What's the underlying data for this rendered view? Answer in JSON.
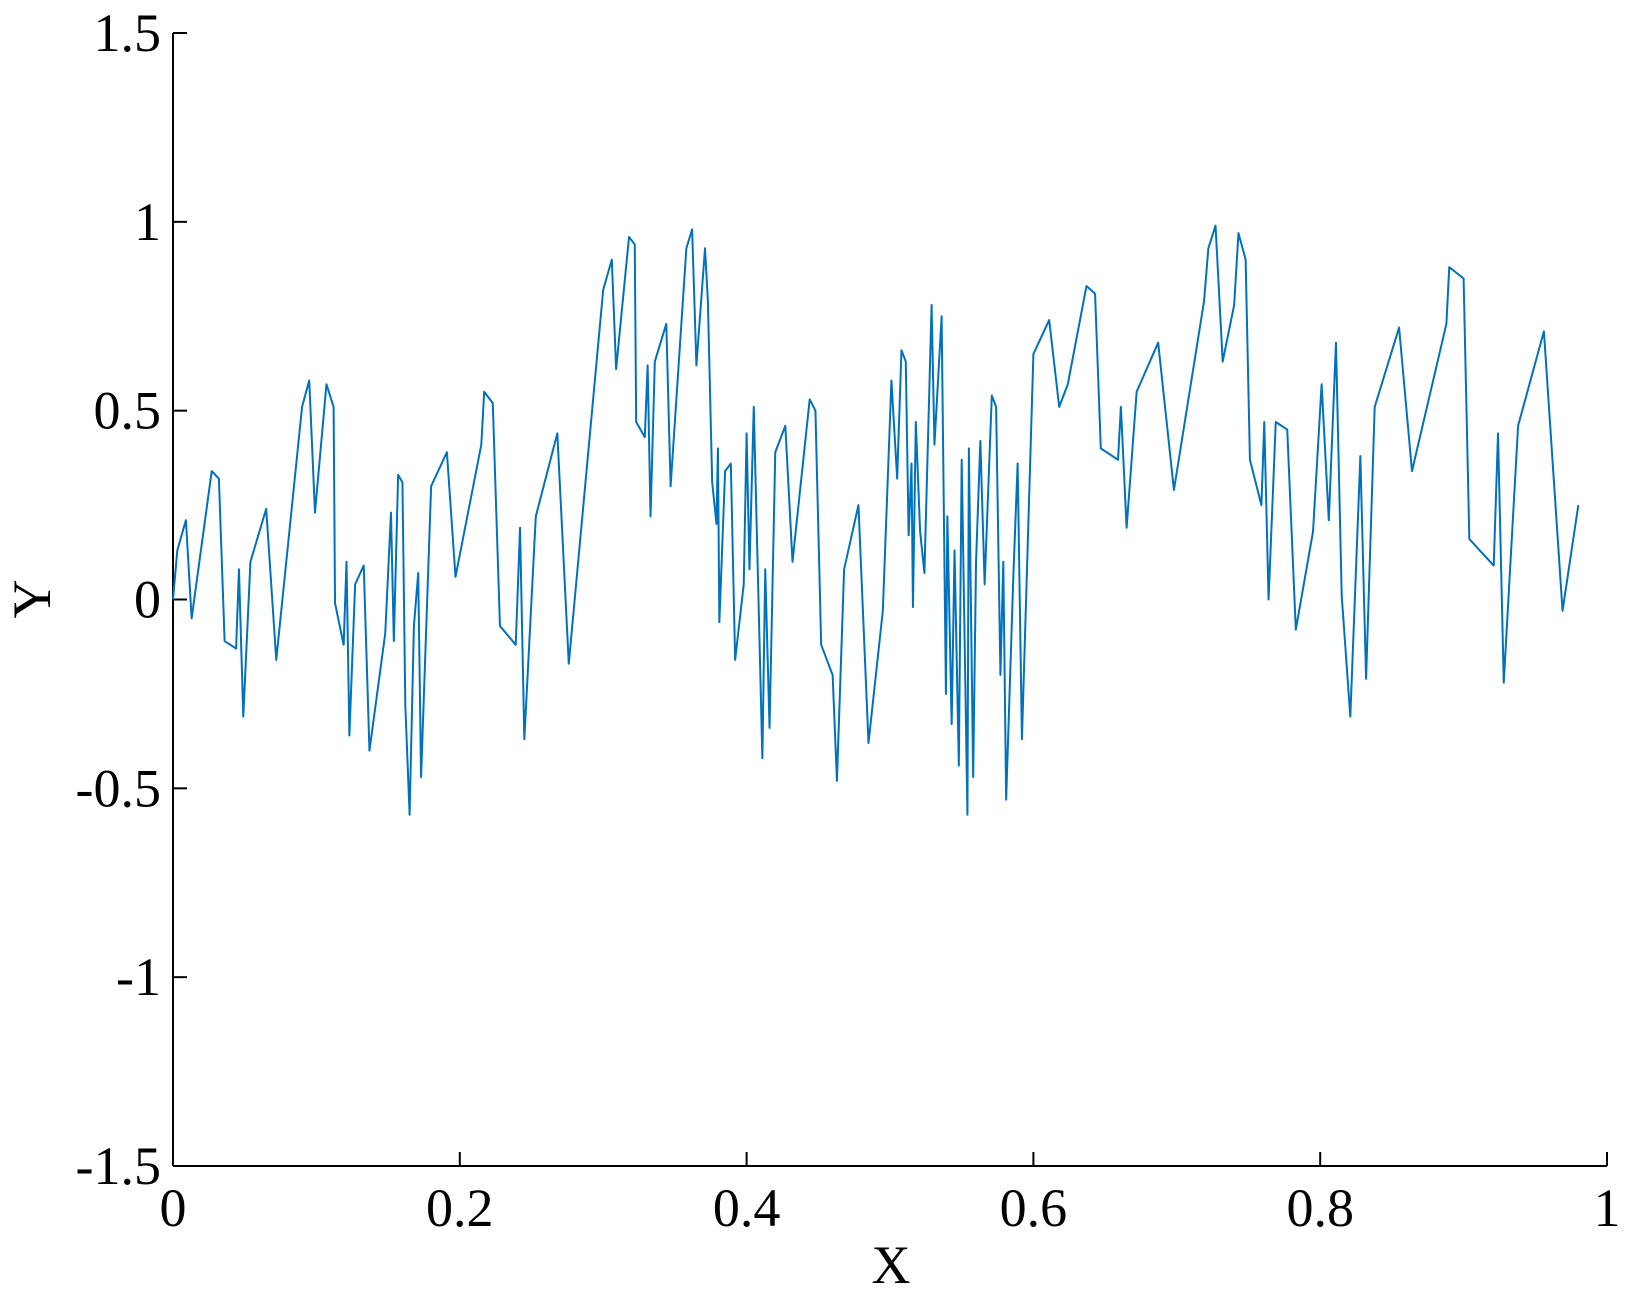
{
  "chart_data": {
    "type": "line",
    "xlabel": "X",
    "ylabel": "Y",
    "xlim": [
      0,
      1
    ],
    "xticks": [
      0,
      0.2,
      0.4,
      0.6,
      0.8,
      1
    ],
    "ylim": [
      -1.5,
      1.5
    ],
    "yticks": [
      -1.5,
      -1,
      -0.5,
      0,
      0.5,
      1,
      1.5
    ],
    "grid": false,
    "series": [
      {
        "color": "#0072bd",
        "x": [
          0,
          0.003,
          0.009,
          0.013,
          0.027,
          0.032,
          0.036,
          0.044,
          0.046,
          0.049,
          0.054,
          0.065,
          0.072,
          0.09,
          0.095,
          0.099,
          0.107,
          0.112,
          0.113,
          0.119,
          0.121,
          0.123,
          0.127,
          0.133,
          0.137,
          0.148,
          0.152,
          0.154,
          0.157,
          0.16,
          0.162,
          0.165,
          0.168,
          0.171,
          0.173,
          0.18,
          0.191,
          0.197,
          0.215,
          0.217,
          0.223,
          0.228,
          0.239,
          0.242,
          0.245,
          0.253,
          0.268,
          0.276,
          0.3,
          0.306,
          0.309,
          0.318,
          0.322,
          0.323,
          0.329,
          0.331,
          0.333,
          0.336,
          0.344,
          0.347,
          0.358,
          0.362,
          0.365,
          0.371,
          0.373,
          0.376,
          0.379,
          0.38,
          0.381,
          0.385,
          0.389,
          0.392,
          0.398,
          0.4,
          0.402,
          0.405,
          0.411,
          0.413,
          0.416,
          0.42,
          0.427,
          0.432,
          0.444,
          0.448,
          0.452,
          0.46,
          0.463,
          0.468,
          0.478,
          0.485,
          0.495,
          0.501,
          0.505,
          0.508,
          0.511,
          0.513,
          0.515,
          0.516,
          0.518,
          0.521,
          0.524,
          0.529,
          0.531,
          0.536,
          0.539,
          0.54,
          0.543,
          0.545,
          0.548,
          0.55,
          0.554,
          0.555,
          0.558,
          0.56,
          0.563,
          0.566,
          0.571,
          0.574,
          0.577,
          0.579,
          0.581,
          0.586,
          0.589,
          0.592,
          0.6,
          0.611,
          0.618,
          0.624,
          0.637,
          0.643,
          0.647,
          0.659,
          0.661,
          0.665,
          0.672,
          0.687,
          0.698,
          0.719,
          0.722,
          0.727,
          0.732,
          0.74,
          0.743,
          0.748,
          0.751,
          0.759,
          0.761,
          0.764,
          0.769,
          0.777,
          0.783,
          0.795,
          0.801,
          0.806,
          0.811,
          0.815,
          0.821,
          0.828,
          0.832,
          0.838,
          0.855,
          0.864,
          0.888,
          0.89,
          0.9,
          0.904,
          0.921,
          0.924,
          0.928,
          0.938,
          0.956,
          0.969,
          0.98
        ],
        "values": [
          0,
          0.13,
          0.21,
          -0.05,
          0.34,
          0.32,
          -0.11,
          -0.13,
          0.08,
          -0.31,
          0.1,
          0.24,
          -0.16,
          0.51,
          0.58,
          0.23,
          0.57,
          0.51,
          -0.01,
          -0.12,
          0.1,
          -0.36,
          0.04,
          0.09,
          -0.4,
          -0.09,
          0.23,
          -0.11,
          0.33,
          0.31,
          -0.28,
          -0.57,
          -0.07,
          0.07,
          -0.47,
          0.3,
          0.39,
          0.06,
          0.41,
          0.55,
          0.52,
          -0.07,
          -0.12,
          0.19,
          -0.37,
          0.22,
          0.44,
          -0.17,
          0.82,
          0.9,
          0.61,
          0.96,
          0.94,
          0.47,
          0.43,
          0.62,
          0.22,
          0.63,
          0.73,
          0.3,
          0.93,
          0.98,
          0.62,
          0.93,
          0.79,
          0.31,
          0.2,
          0.4,
          -0.06,
          0.34,
          0.36,
          -0.16,
          0.04,
          0.44,
          0.08,
          0.51,
          -0.42,
          0.08,
          -0.34,
          0.39,
          0.46,
          0.1,
          0.53,
          0.5,
          -0.12,
          -0.2,
          -0.48,
          0.08,
          0.25,
          -0.38,
          -0.03,
          0.58,
          0.32,
          0.66,
          0.63,
          0.17,
          0.36,
          -0.02,
          0.47,
          0.18,
          0.07,
          0.78,
          0.41,
          0.75,
          -0.25,
          0.22,
          -0.33,
          0.13,
          -0.44,
          0.37,
          -0.57,
          0.4,
          -0.47,
          0.1,
          0.42,
          0.04,
          0.54,
          0.51,
          -0.2,
          0.1,
          -0.53,
          0.06,
          0.36,
          -0.37,
          0.65,
          0.74,
          0.51,
          0.57,
          0.83,
          0.81,
          0.4,
          0.37,
          0.51,
          0.19,
          0.55,
          0.68,
          0.29,
          0.79,
          0.93,
          0.99,
          0.63,
          0.78,
          0.97,
          0.9,
          0.37,
          0.25,
          0.47,
          0,
          0.47,
          0.45,
          -0.08,
          0.18,
          0.57,
          0.21,
          0.68,
          0.01,
          -0.31,
          0.38,
          -0.21,
          0.51,
          0.72,
          0.34,
          0.73,
          0.88,
          0.85,
          0.16,
          0.09,
          0.44,
          -0.22,
          0.46,
          0.71,
          -0.03,
          0.25
        ]
      }
    ]
  }
}
